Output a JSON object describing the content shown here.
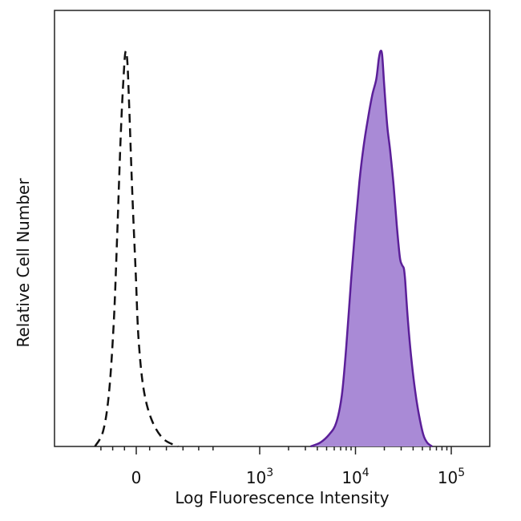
{
  "chart_data": {
    "type": "area",
    "title": "",
    "xlabel": "Log Fluorescence Intensity",
    "ylabel": "Relative Cell Number",
    "x_scale": "biexponential",
    "x_ticks": [
      {
        "value": 0,
        "label": "0"
      },
      {
        "value": 1000,
        "label": "10",
        "exp": "3"
      },
      {
        "value": 10000,
        "label": "10",
        "exp": "4"
      },
      {
        "value": 100000,
        "label": "10",
        "exp": "5"
      }
    ],
    "ylim": [
      0,
      100
    ],
    "grid": false,
    "legend": "none",
    "series": [
      {
        "style": "dashed-outline",
        "color": "#111111",
        "points": [
          [
            -350,
            0
          ],
          [
            -280,
            4
          ],
          [
            -230,
            14
          ],
          [
            -190,
            32
          ],
          [
            -160,
            55
          ],
          [
            -130,
            80
          ],
          [
            -105,
            95
          ],
          [
            -90,
            100
          ],
          [
            -75,
            97
          ],
          [
            -60,
            86
          ],
          [
            -35,
            65
          ],
          [
            -5,
            44
          ],
          [
            25,
            28
          ],
          [
            60,
            15
          ],
          [
            110,
            7
          ],
          [
            180,
            2
          ],
          [
            270,
            0
          ]
        ]
      },
      {
        "style": "filled",
        "color": "#5b1f99",
        "fill": "#a98ad6",
        "points": [
          [
            3400,
            0
          ],
          [
            4300,
            1
          ],
          [
            5300,
            3
          ],
          [
            6300,
            6
          ],
          [
            7200,
            13
          ],
          [
            8000,
            25
          ],
          [
            9000,
            42
          ],
          [
            10000,
            56
          ],
          [
            11000,
            67
          ],
          [
            12000,
            75
          ],
          [
            13500,
            83
          ],
          [
            15000,
            89
          ],
          [
            16500,
            93
          ],
          [
            17500,
            98
          ],
          [
            18200,
            100
          ],
          [
            19000,
            99
          ],
          [
            20000,
            91
          ],
          [
            21500,
            81
          ],
          [
            23000,
            75
          ],
          [
            25000,
            66
          ],
          [
            27000,
            56
          ],
          [
            29000,
            48
          ],
          [
            30500,
            46
          ],
          [
            32000,
            45
          ],
          [
            33000,
            42
          ],
          [
            35000,
            33
          ],
          [
            38000,
            23
          ],
          [
            42000,
            14
          ],
          [
            46000,
            8
          ],
          [
            51000,
            3
          ],
          [
            56000,
            1
          ],
          [
            63000,
            0
          ]
        ]
      }
    ]
  }
}
